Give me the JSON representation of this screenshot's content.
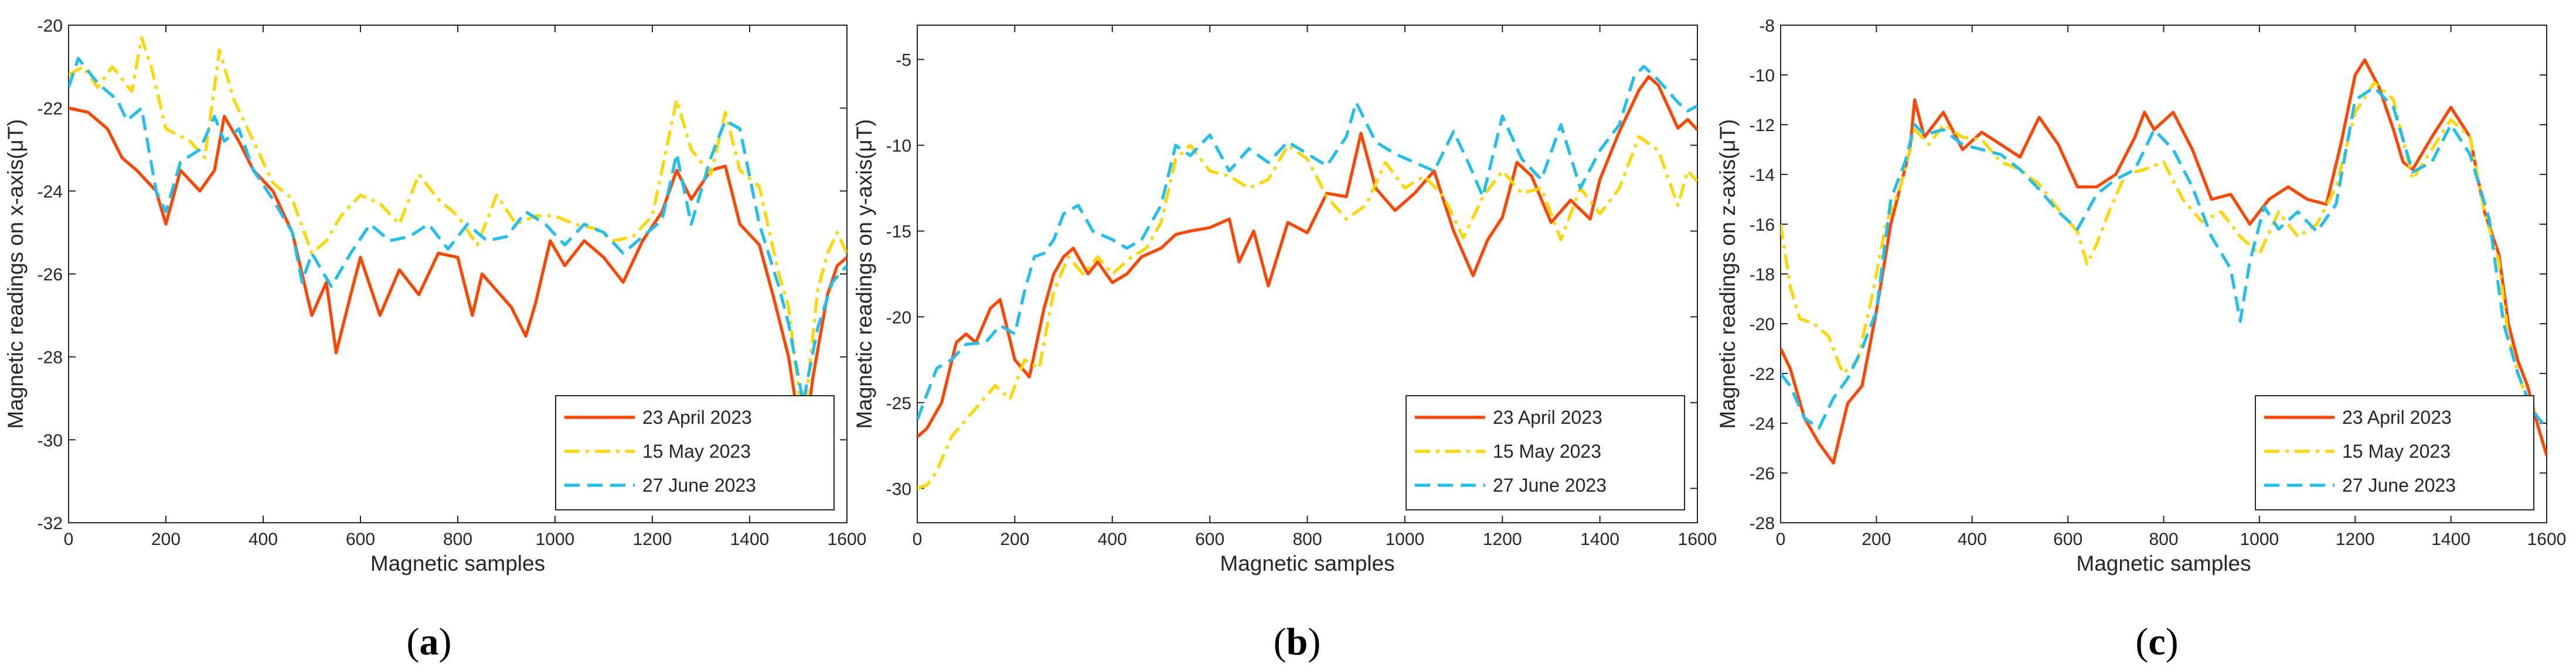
{
  "figure": {
    "series_colors": {
      "23 April 2023": "#FF4500",
      "15 May 2023": "#FFD700",
      "27 June 2023": "#1FBFEF"
    }
  },
  "chart_data": [
    {
      "panel": "a",
      "panel_label": {
        "open": "(",
        "letter": "a",
        "close": ")"
      },
      "type": "line",
      "xlabel": "Magnetic samples",
      "ylabel": "Magnetic readings on x-axis(μT)",
      "xlim": [
        0,
        1600
      ],
      "ylim": [
        -32,
        -20
      ],
      "xticks": [
        0,
        200,
        400,
        600,
        800,
        1000,
        1200,
        1400,
        1600
      ],
      "yticks": [
        -32,
        -30,
        -28,
        -26,
        -24,
        -22,
        -20
      ],
      "legend_position": "bottom-right",
      "series": [
        {
          "name": "23 April 2023",
          "color": "#FF4500",
          "style": "solid",
          "width": 5.2,
          "x": [
            0,
            40,
            80,
            110,
            140,
            180,
            200,
            230,
            270,
            300,
            320,
            350,
            380,
            420,
            460,
            480,
            500,
            530,
            550,
            580,
            600,
            640,
            680,
            720,
            760,
            800,
            830,
            850,
            880,
            910,
            940,
            960,
            990,
            1020,
            1060,
            1100,
            1140,
            1180,
            1220,
            1250,
            1280,
            1320,
            1350,
            1380,
            1420,
            1450,
            1480,
            1500,
            1510,
            1530,
            1560,
            1580,
            1600
          ],
          "y": [
            -22,
            -22.1,
            -22.5,
            -23.2,
            -23.5,
            -24,
            -24.8,
            -23.5,
            -24,
            -23.5,
            -22.2,
            -22.8,
            -23.5,
            -24,
            -25,
            -26,
            -27,
            -26.2,
            -27.9,
            -26.5,
            -25.6,
            -27,
            -25.9,
            -26.5,
            -25.5,
            -25.6,
            -27,
            -26,
            -26.4,
            -26.8,
            -27.5,
            -26.7,
            -25.2,
            -25.8,
            -25.2,
            -25.6,
            -26.2,
            -25.2,
            -24.5,
            -23.5,
            -24.2,
            -23.5,
            -23.4,
            -24.8,
            -25.3,
            -26.6,
            -28,
            -29.5,
            -30.3,
            -28.5,
            -26.5,
            -25.8,
            -25.6
          ]
        },
        {
          "name": "15 May 2023",
          "color": "#FFD700",
          "style": "dashdot",
          "width": 5.2,
          "x": [
            0,
            30,
            60,
            90,
            130,
            150,
            170,
            200,
            250,
            280,
            300,
            310,
            340,
            380,
            420,
            460,
            500,
            530,
            560,
            600,
            640,
            680,
            720,
            760,
            800,
            840,
            880,
            920,
            960,
            1000,
            1040,
            1080,
            1120,
            1160,
            1200,
            1250,
            1280,
            1320,
            1350,
            1380,
            1420,
            1460,
            1480,
            1510,
            1540,
            1560,
            1580,
            1600
          ],
          "y": [
            -21.2,
            -21,
            -21.5,
            -21,
            -21.6,
            -20.3,
            -21,
            -22.5,
            -22.8,
            -23.2,
            -21.5,
            -20.6,
            -21.8,
            -22.8,
            -23.8,
            -24.2,
            -25.5,
            -25.2,
            -24.6,
            -24.1,
            -24.3,
            -24.8,
            -23.6,
            -24.2,
            -24.6,
            -25.3,
            -24.1,
            -24.8,
            -24.6,
            -24.6,
            -24.8,
            -24.9,
            -25.2,
            -25.1,
            -24.6,
            -21.8,
            -23,
            -23.6,
            -22.1,
            -23.5,
            -23.9,
            -26,
            -26.8,
            -29.7,
            -26.4,
            -25.5,
            -25,
            -25.5
          ]
        },
        {
          "name": "27 June 2023",
          "color": "#1FBFEF",
          "style": "dashed",
          "width": 5.2,
          "x": [
            0,
            20,
            60,
            100,
            120,
            150,
            180,
            200,
            230,
            270,
            300,
            320,
            350,
            380,
            420,
            460,
            480,
            500,
            540,
            580,
            620,
            660,
            700,
            740,
            780,
            820,
            860,
            900,
            940,
            980,
            1020,
            1060,
            1100,
            1140,
            1180,
            1220,
            1250,
            1280,
            1320,
            1350,
            1380,
            1420,
            1460,
            1480,
            1510,
            1540,
            1570,
            1600
          ],
          "y": [
            -21.5,
            -20.8,
            -21.4,
            -21.8,
            -22.3,
            -22,
            -24,
            -24.5,
            -23.3,
            -23,
            -22.2,
            -22.8,
            -22.5,
            -23.5,
            -24.2,
            -25,
            -26.2,
            -25.5,
            -26.3,
            -25.5,
            -24.8,
            -25.2,
            -25.1,
            -24.8,
            -25.4,
            -24.8,
            -25.2,
            -25.1,
            -24.5,
            -24.8,
            -25.3,
            -24.8,
            -25,
            -25.5,
            -25.1,
            -24.7,
            -23.1,
            -24.8,
            -23.2,
            -22.3,
            -22.5,
            -24.8,
            -26.3,
            -27.2,
            -29.1,
            -27.3,
            -26.2,
            -25.8
          ]
        }
      ]
    },
    {
      "panel": "b",
      "panel_label": {
        "open": "(",
        "letter": "b",
        "close": ")"
      },
      "type": "line",
      "xlabel": "Magnetic samples",
      "ylabel": "Magnetic readings on y-axis(μT)",
      "xlim": [
        0,
        1600
      ],
      "ylim": [
        -32,
        -3
      ],
      "xticks": [
        0,
        200,
        400,
        600,
        800,
        1000,
        1200,
        1400,
        1600
      ],
      "yticks": [
        -30,
        -25,
        -20,
        -15,
        -10,
        -5
      ],
      "legend_position": "bottom-right",
      "series": [
        {
          "name": "23 April 2023",
          "color": "#FF4500",
          "style": "solid",
          "width": 5.2,
          "x": [
            0,
            20,
            50,
            80,
            100,
            120,
            150,
            170,
            200,
            230,
            260,
            280,
            300,
            320,
            350,
            370,
            400,
            430,
            460,
            500,
            530,
            560,
            600,
            640,
            660,
            690,
            720,
            760,
            800,
            840,
            880,
            910,
            940,
            980,
            1020,
            1060,
            1100,
            1140,
            1170,
            1200,
            1230,
            1260,
            1300,
            1340,
            1380,
            1400,
            1440,
            1480,
            1500,
            1520,
            1560,
            1580,
            1600
          ],
          "y": [
            -27,
            -26.5,
            -25,
            -21.5,
            -21,
            -21.5,
            -19.5,
            -19,
            -22.5,
            -23.5,
            -19.5,
            -17.5,
            -16.5,
            -16,
            -17.5,
            -16.8,
            -18,
            -17.5,
            -16.5,
            -16,
            -15.2,
            -15,
            -14.8,
            -14.3,
            -16.8,
            -15,
            -18.2,
            -14.5,
            -15.1,
            -12.8,
            -13,
            -9.3,
            -12.5,
            -13.8,
            -12.8,
            -11.5,
            -15,
            -17.6,
            -15.5,
            -14.2,
            -11,
            -11.8,
            -14.5,
            -13.2,
            -14.3,
            -12,
            -9.2,
            -6.8,
            -6,
            -6.5,
            -9,
            -8.5,
            -9.1
          ]
        },
        {
          "name": "15 May 2023",
          "color": "#FFD700",
          "style": "dashdot",
          "width": 5.2,
          "x": [
            0,
            20,
            40,
            70,
            100,
            130,
            160,
            190,
            220,
            250,
            280,
            310,
            340,
            370,
            400,
            440,
            470,
            500,
            530,
            560,
            600,
            640,
            680,
            720,
            760,
            800,
            840,
            880,
            920,
            960,
            1000,
            1040,
            1080,
            1120,
            1160,
            1200,
            1240,
            1280,
            1320,
            1360,
            1400,
            1440,
            1480,
            1520,
            1560,
            1580,
            1600
          ],
          "y": [
            -30,
            -29.8,
            -29,
            -27,
            -26,
            -25,
            -24,
            -24.8,
            -22.5,
            -23,
            -18.5,
            -16.5,
            -17.5,
            -16.5,
            -17.5,
            -16.5,
            -16,
            -14.5,
            -10.8,
            -10,
            -11.5,
            -11.8,
            -12.5,
            -12,
            -10,
            -10.8,
            -13,
            -14.3,
            -13.5,
            -11,
            -12.5,
            -11.8,
            -13,
            -15.4,
            -13,
            -11.5,
            -12.8,
            -12.5,
            -15.5,
            -12.5,
            -14,
            -12.5,
            -9.5,
            -10.3,
            -13.5,
            -11.5,
            -12.1
          ]
        },
        {
          "name": "27 June 2023",
          "color": "#1FBFEF",
          "style": "dashed",
          "width": 5.2,
          "x": [
            0,
            20,
            40,
            70,
            100,
            140,
            170,
            200,
            220,
            240,
            260,
            280,
            300,
            330,
            360,
            400,
            430,
            460,
            500,
            530,
            560,
            600,
            640,
            680,
            720,
            760,
            800,
            840,
            880,
            900,
            940,
            980,
            1020,
            1060,
            1100,
            1130,
            1160,
            1200,
            1240,
            1280,
            1320,
            1360,
            1400,
            1440,
            1470,
            1490,
            1520,
            1560,
            1580,
            1600
          ],
          "y": [
            -26,
            -24.5,
            -23,
            -22.5,
            -21.6,
            -21.5,
            -20.5,
            -21,
            -18.5,
            -16.5,
            -16.3,
            -15.5,
            -14,
            -13.5,
            -15,
            -15.5,
            -16,
            -15.5,
            -13.5,
            -10,
            -10.6,
            -9.4,
            -11.5,
            -10.2,
            -11,
            -9.8,
            -10.5,
            -11.2,
            -9.5,
            -7.5,
            -9.8,
            -10.5,
            -11,
            -11.5,
            -9.2,
            -11,
            -13,
            -8.3,
            -10.8,
            -12,
            -8.8,
            -12.5,
            -10.3,
            -8.8,
            -6,
            -5.4,
            -6.2,
            -7.5,
            -8,
            -7.7
          ]
        }
      ]
    },
    {
      "panel": "c",
      "panel_label": {
        "open": "(",
        "letter": "c",
        "close": ")"
      },
      "type": "line",
      "xlabel": "Magnetic samples",
      "ylabel": "Magnetic readings on z-axis(μT)",
      "xlim": [
        0,
        1600
      ],
      "ylim": [
        -28,
        -8
      ],
      "xticks": [
        0,
        200,
        400,
        600,
        800,
        1000,
        1200,
        1400,
        1600
      ],
      "yticks": [
        -28,
        -26,
        -24,
        -22,
        -20,
        -18,
        -16,
        -14,
        -12,
        -10,
        -8
      ],
      "legend_position": "bottom-right",
      "series": [
        {
          "name": "23 April 2023",
          "color": "#FF4500",
          "style": "solid",
          "width": 5.2,
          "x": [
            0,
            20,
            50,
            80,
            110,
            140,
            170,
            200,
            230,
            250,
            270,
            280,
            300,
            340,
            380,
            420,
            460,
            500,
            540,
            580,
            620,
            660,
            700,
            740,
            760,
            780,
            820,
            860,
            900,
            940,
            980,
            1020,
            1060,
            1100,
            1140,
            1170,
            1200,
            1220,
            1250,
            1280,
            1300,
            1320,
            1360,
            1400,
            1440,
            1470,
            1500,
            1520,
            1540,
            1560,
            1580,
            1600
          ],
          "y": [
            -21,
            -21.8,
            -23.8,
            -24.8,
            -25.6,
            -23.2,
            -22.5,
            -19.5,
            -16,
            -14.5,
            -13,
            -11,
            -12.5,
            -11.5,
            -13,
            -12.3,
            -12.8,
            -13.3,
            -11.7,
            -12.8,
            -14.5,
            -14.5,
            -14,
            -12.5,
            -11.5,
            -12.2,
            -11.5,
            -13,
            -15,
            -14.8,
            -16,
            -15,
            -14.5,
            -15,
            -15.2,
            -12.8,
            -10,
            -9.4,
            -10.5,
            -12.2,
            -13.5,
            -13.8,
            -12.5,
            -11.3,
            -12.5,
            -15.5,
            -17.2,
            -20,
            -21.5,
            -22.5,
            -24,
            -25.3
          ]
        },
        {
          "name": "15 May 2023",
          "color": "#FFD700",
          "style": "dashdot",
          "width": 5.2,
          "x": [
            0,
            20,
            40,
            70,
            100,
            130,
            160,
            190,
            220,
            250,
            280,
            310,
            340,
            380,
            420,
            460,
            500,
            540,
            580,
            620,
            640,
            660,
            690,
            720,
            760,
            800,
            840,
            880,
            920,
            960,
            1000,
            1040,
            1080,
            1120,
            1160,
            1200,
            1240,
            1280,
            1320,
            1360,
            1400,
            1440,
            1470,
            1500,
            1520,
            1540,
            1560,
            1580,
            1600
          ],
          "y": [
            -16,
            -18.5,
            -19.8,
            -20,
            -20.5,
            -22,
            -21.5,
            -19,
            -16,
            -14.5,
            -12.2,
            -12.8,
            -12,
            -12.5,
            -12.6,
            -13.5,
            -13.8,
            -14.4,
            -15.4,
            -16.3,
            -17.6,
            -16.8,
            -15.3,
            -14,
            -13.8,
            -13.5,
            -15,
            -15.9,
            -15.5,
            -16.5,
            -17.2,
            -15.5,
            -16.5,
            -16,
            -14.5,
            -11.5,
            -10.3,
            -11,
            -14.2,
            -13,
            -11.8,
            -12.5,
            -15.5,
            -17.5,
            -20.5,
            -22,
            -23.1,
            -23.7,
            -24.2
          ]
        },
        {
          "name": "27 June 2023",
          "color": "#1FBFEF",
          "style": "dashed",
          "width": 5.2,
          "x": [
            0,
            20,
            50,
            80,
            110,
            140,
            170,
            200,
            230,
            260,
            280,
            300,
            340,
            380,
            420,
            460,
            500,
            540,
            580,
            620,
            660,
            700,
            740,
            780,
            820,
            860,
            900,
            940,
            960,
            980,
            1010,
            1040,
            1080,
            1120,
            1160,
            1200,
            1240,
            1280,
            1320,
            1360,
            1400,
            1440,
            1480,
            1510,
            1540,
            1570,
            1600
          ],
          "y": [
            -22,
            -22.5,
            -23.8,
            -24.2,
            -23,
            -22.2,
            -21,
            -19.5,
            -15,
            -13.5,
            -12,
            -12.4,
            -12.2,
            -12.8,
            -13,
            -13.2,
            -13.8,
            -14.6,
            -15.5,
            -16.2,
            -14.8,
            -14.2,
            -13.8,
            -12.2,
            -13,
            -14.5,
            -16.5,
            -17.8,
            -19.9,
            -17.5,
            -15.3,
            -16.2,
            -15.5,
            -16.3,
            -15.2,
            -11,
            -10.5,
            -11.3,
            -13.9,
            -13.5,
            -12,
            -13.2,
            -15.8,
            -20,
            -22,
            -23.5,
            -24.2
          ]
        }
      ]
    }
  ]
}
